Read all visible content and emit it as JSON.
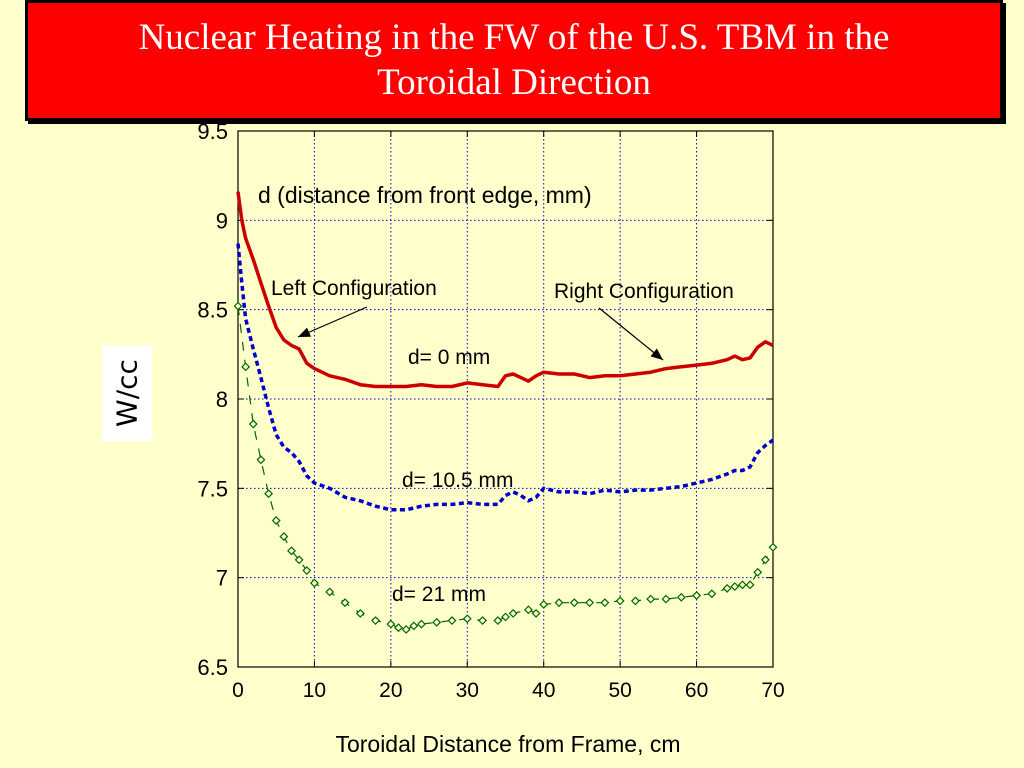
{
  "slide": {
    "title_line1": "Nuclear Heating in the FW of the U.S. TBM in the",
    "title_line2": "Toroidal Direction"
  },
  "colors": {
    "background": "#FFFFCC",
    "title_bg": "#FF0000",
    "d0": "#CC0000",
    "d105": "#0000CC",
    "d21": "#006600",
    "grid": "#0000CC"
  },
  "chart_data": {
    "type": "line",
    "xlabel": "Toroidal Distance from Frame, cm",
    "ylabel": "W/cc",
    "xlim": [
      0,
      70
    ],
    "ylim": [
      6.5,
      9.5
    ],
    "xticks": [
      0,
      10,
      20,
      30,
      40,
      50,
      60,
      70
    ],
    "yticks": [
      6.5,
      7,
      7.5,
      8,
      8.5,
      9,
      9.5
    ],
    "grid": true,
    "legend": "none",
    "annotations": {
      "header": "d (distance from front edge, mm)",
      "left_config": "Left Configuration",
      "right_config": "Right Configuration"
    },
    "series": [
      {
        "name": "d= 0 mm",
        "style": "solid",
        "x": [
          0,
          0.5,
          1,
          2,
          3,
          4,
          5,
          6,
          7,
          8,
          9,
          10,
          12,
          14,
          16,
          18,
          20,
          22,
          24,
          26,
          28,
          30,
          32,
          34,
          35,
          36,
          37,
          38,
          39,
          40,
          42,
          44,
          46,
          48,
          50,
          52,
          54,
          56,
          58,
          60,
          62,
          64,
          65,
          66,
          67,
          68,
          69,
          70
        ],
        "values": [
          9.16,
          9.0,
          8.9,
          8.78,
          8.65,
          8.52,
          8.4,
          8.33,
          8.3,
          8.28,
          8.2,
          8.17,
          8.13,
          8.11,
          8.08,
          8.07,
          8.07,
          8.07,
          8.08,
          8.07,
          8.07,
          8.09,
          8.08,
          8.07,
          8.13,
          8.14,
          8.12,
          8.1,
          8.13,
          8.15,
          8.14,
          8.14,
          8.12,
          8.13,
          8.13,
          8.14,
          8.15,
          8.17,
          8.18,
          8.19,
          8.2,
          8.22,
          8.24,
          8.22,
          8.23,
          8.29,
          8.32,
          8.3
        ]
      },
      {
        "name": "d= 10.5 mm",
        "style": "dotted",
        "x": [
          0,
          0.5,
          1,
          2,
          3,
          4,
          5,
          6,
          7,
          8,
          9,
          10,
          12,
          14,
          16,
          18,
          20,
          22,
          24,
          26,
          28,
          30,
          32,
          34,
          35,
          36,
          37,
          38,
          39,
          40,
          42,
          44,
          46,
          48,
          50,
          52,
          54,
          56,
          58,
          60,
          62,
          64,
          65,
          66,
          67,
          68,
          69,
          70
        ],
        "values": [
          8.87,
          8.65,
          8.45,
          8.28,
          8.12,
          7.95,
          7.8,
          7.73,
          7.7,
          7.65,
          7.57,
          7.53,
          7.5,
          7.45,
          7.43,
          7.4,
          7.38,
          7.38,
          7.4,
          7.41,
          7.41,
          7.42,
          7.41,
          7.41,
          7.46,
          7.48,
          7.46,
          7.43,
          7.45,
          7.5,
          7.48,
          7.48,
          7.47,
          7.49,
          7.48,
          7.49,
          7.49,
          7.5,
          7.51,
          7.53,
          7.55,
          7.58,
          7.6,
          7.6,
          7.62,
          7.7,
          7.74,
          7.77
        ]
      },
      {
        "name": "d= 21 mm",
        "style": "dashed-diamond",
        "x": [
          0,
          1,
          2,
          3,
          4,
          5,
          6,
          7,
          8,
          9,
          10,
          12,
          14,
          16,
          18,
          20,
          21,
          22,
          23,
          24,
          26,
          28,
          30,
          32,
          34,
          35,
          36,
          38,
          39,
          40,
          42,
          44,
          46,
          48,
          50,
          52,
          54,
          56,
          58,
          60,
          62,
          64,
          65,
          66,
          67,
          68,
          69,
          70
        ],
        "values": [
          8.52,
          8.18,
          7.86,
          7.66,
          7.47,
          7.32,
          7.23,
          7.15,
          7.1,
          7.04,
          6.97,
          6.92,
          6.86,
          6.8,
          6.76,
          6.74,
          6.72,
          6.71,
          6.73,
          6.74,
          6.75,
          6.76,
          6.77,
          6.76,
          6.76,
          6.78,
          6.8,
          6.82,
          6.8,
          6.85,
          6.86,
          6.86,
          6.86,
          6.86,
          6.87,
          6.87,
          6.88,
          6.88,
          6.89,
          6.9,
          6.91,
          6.94,
          6.95,
          6.96,
          6.96,
          7.03,
          7.1,
          7.17
        ]
      }
    ]
  }
}
